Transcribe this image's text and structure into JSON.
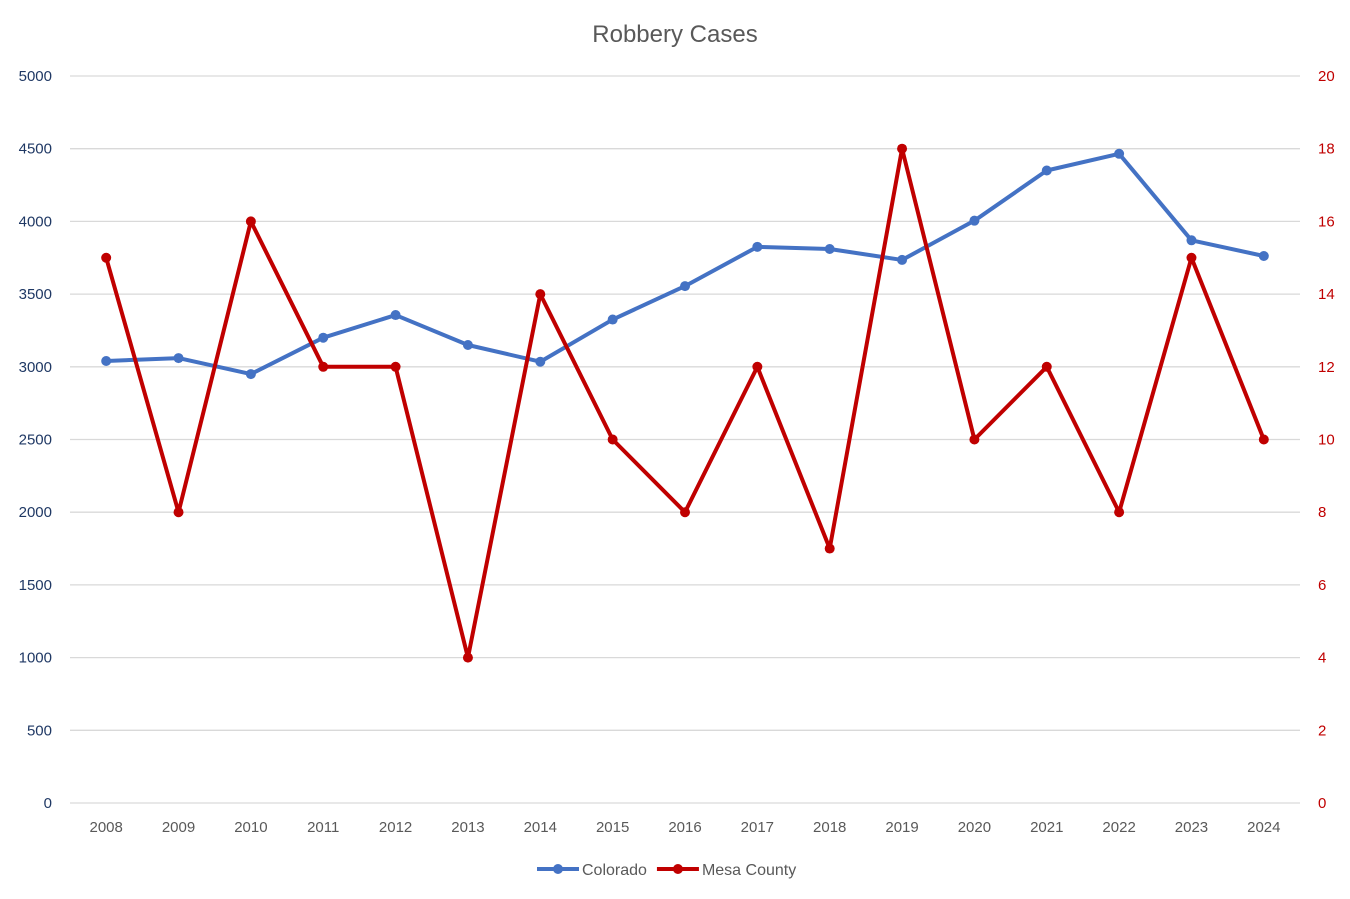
{
  "chart_data": {
    "type": "line",
    "title": "Robbery Cases",
    "categories": [
      "2008",
      "2009",
      "2010",
      "2011",
      "2012",
      "2013",
      "2014",
      "2015",
      "2016",
      "2017",
      "2018",
      "2019",
      "2020",
      "2021",
      "2022",
      "2023",
      "2024"
    ],
    "series": [
      {
        "name": "Colorado",
        "axis": "left",
        "color": "#4472C4",
        "values": [
          3040,
          3060,
          2950,
          3200,
          3356,
          3150,
          3035,
          3325,
          3555,
          3825,
          3810,
          3735,
          4005,
          4350,
          4465,
          3870,
          3762
        ]
      },
      {
        "name": "Mesa County",
        "axis": "right",
        "color": "#C00000",
        "values": [
          15,
          8,
          16,
          12,
          12,
          4,
          14,
          10,
          8,
          12,
          7,
          18,
          10,
          12,
          8,
          15,
          10
        ]
      }
    ],
    "y_left": {
      "range": [
        0,
        5000
      ],
      "ticks": [
        "0",
        "500",
        "1000",
        "1500",
        "2000",
        "2500",
        "3000",
        "3500",
        "4000",
        "4500",
        "5000"
      ],
      "color": "#1F3864"
    },
    "y_right": {
      "range": [
        0,
        20
      ],
      "ticks": [
        "0",
        "2",
        "4",
        "6",
        "8",
        "10",
        "12",
        "14",
        "16",
        "18",
        "20"
      ],
      "color": "#C00000"
    },
    "grid": true,
    "legend": "bottom"
  }
}
